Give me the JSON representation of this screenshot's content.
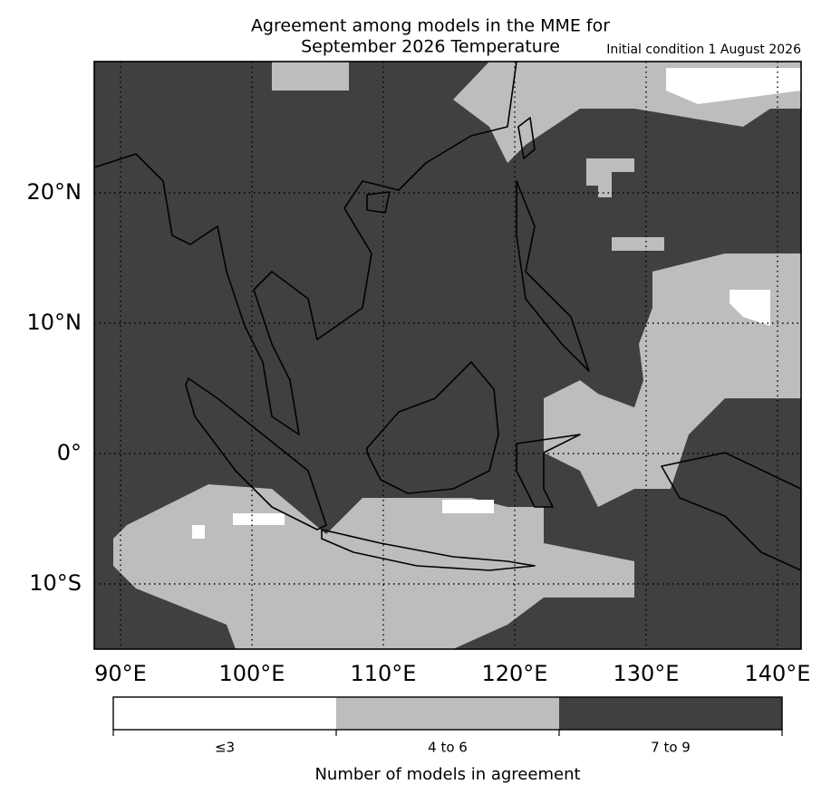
{
  "header": {
    "title_line1": "Agreement among models in the MME for",
    "title_line2": "September 2026  Temperature",
    "initial_condition": "Initial condition 1 August 2026"
  },
  "map": {
    "lon_ticks": [
      {
        "value": 90,
        "label": "90°E"
      },
      {
        "value": 100,
        "label": "100°E"
      },
      {
        "value": 110,
        "label": "110°E"
      },
      {
        "value": 120,
        "label": "120°E"
      },
      {
        "value": 130,
        "label": "130°E"
      },
      {
        "value": 140,
        "label": "140°E"
      }
    ],
    "lat_ticks": [
      {
        "value": 20,
        "label": "20°N"
      },
      {
        "value": 10,
        "label": "10°N"
      },
      {
        "value": 0,
        "label": "0°"
      },
      {
        "value": -10,
        "label": "10°S"
      }
    ]
  },
  "colorbar": {
    "labels": [
      "≤3",
      "4 to 6",
      "7 to 9"
    ],
    "colors": [
      "#ffffff",
      "#bdbdbd",
      "#404040"
    ],
    "title": "Number of models in agreement"
  }
}
